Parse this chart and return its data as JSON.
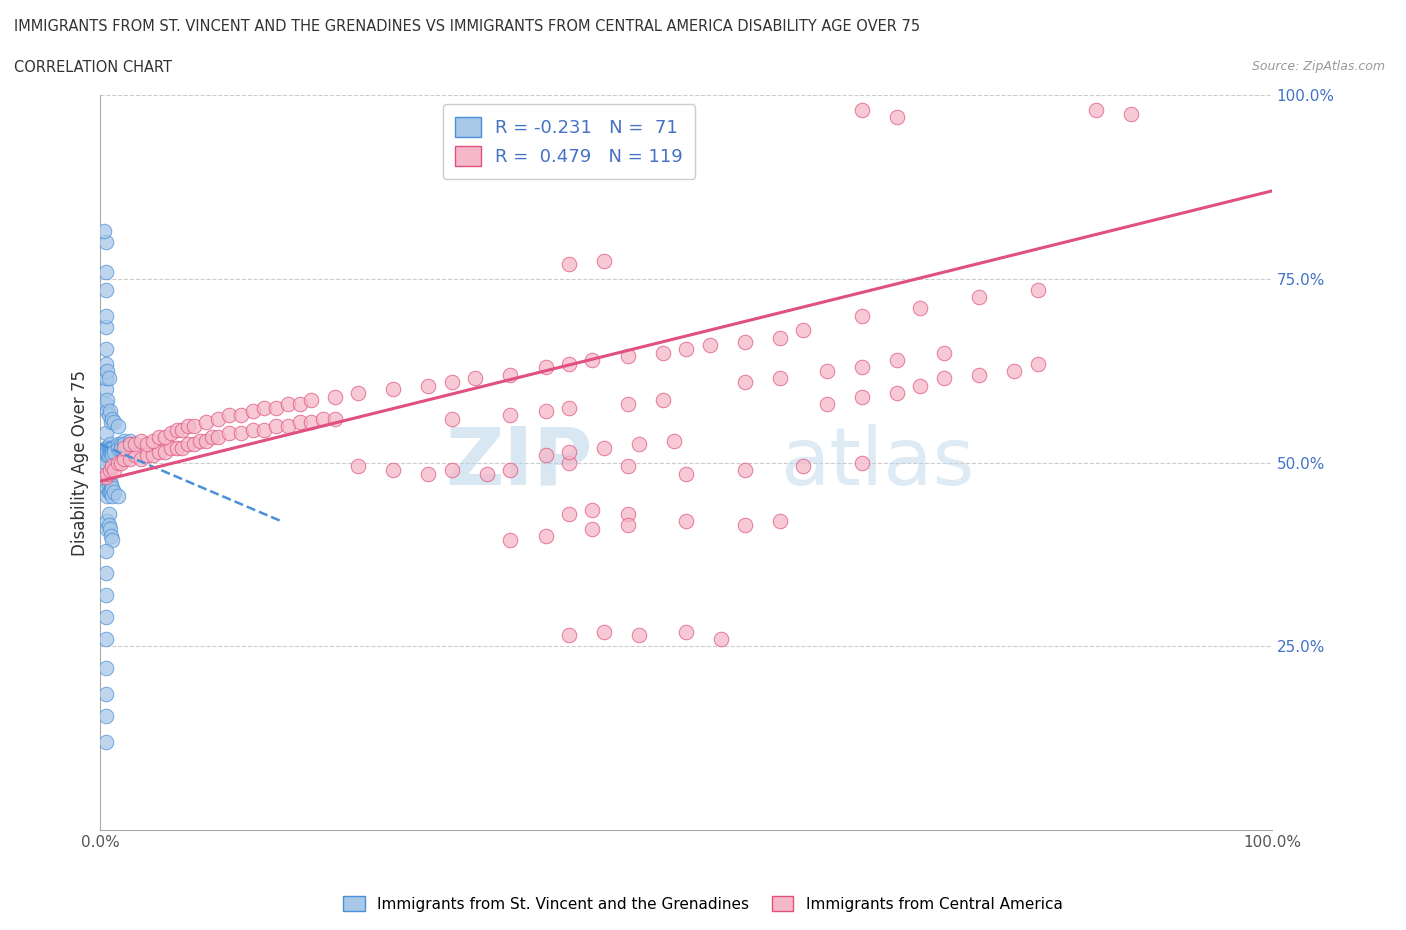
{
  "title_line1": "IMMIGRANTS FROM ST. VINCENT AND THE GRENADINES VS IMMIGRANTS FROM CENTRAL AMERICA DISABILITY AGE OVER 75",
  "title_line2": "CORRELATION CHART",
  "source_text": "Source: ZipAtlas.com",
  "ylabel": "Disability Age Over 75",
  "xlim": [
    0.0,
    1.0
  ],
  "ylim": [
    0.0,
    1.0
  ],
  "color_blue": "#a8c8e8",
  "color_pink": "#f4b8c8",
  "color_trendline_blue": "#4a90d9",
  "color_trendline_pink": "#e05080",
  "watermark_zip": "ZIP",
  "watermark_atlas": "atlas",
  "blue_trend_x": [
    0.0,
    0.155
  ],
  "blue_trend_y": [
    0.525,
    0.42
  ],
  "pink_trend_x": [
    0.0,
    1.0
  ],
  "pink_trend_y": [
    0.475,
    0.87
  ],
  "blue_scatter": [
    [
      0.005,
      0.52
    ],
    [
      0.005,
      0.54
    ],
    [
      0.005,
      0.505
    ],
    [
      0.005,
      0.51
    ],
    [
      0.005,
      0.515
    ],
    [
      0.005,
      0.5
    ],
    [
      0.006,
      0.52
    ],
    [
      0.006,
      0.51
    ],
    [
      0.006,
      0.515
    ],
    [
      0.007,
      0.52
    ],
    [
      0.007,
      0.51
    ],
    [
      0.008,
      0.525
    ],
    [
      0.008,
      0.52
    ],
    [
      0.008,
      0.515
    ],
    [
      0.009,
      0.52
    ],
    [
      0.009,
      0.515
    ],
    [
      0.01,
      0.52
    ],
    [
      0.01,
      0.515
    ],
    [
      0.01,
      0.51
    ],
    [
      0.012,
      0.52
    ],
    [
      0.012,
      0.515
    ],
    [
      0.015,
      0.525
    ],
    [
      0.015,
      0.52
    ],
    [
      0.018,
      0.525
    ],
    [
      0.018,
      0.52
    ],
    [
      0.02,
      0.53
    ],
    [
      0.02,
      0.525
    ],
    [
      0.025,
      0.53
    ],
    [
      0.005,
      0.58
    ],
    [
      0.005,
      0.6
    ],
    [
      0.005,
      0.615
    ],
    [
      0.006,
      0.57
    ],
    [
      0.006,
      0.585
    ],
    [
      0.007,
      0.565
    ],
    [
      0.008,
      0.57
    ],
    [
      0.009,
      0.555
    ],
    [
      0.01,
      0.56
    ],
    [
      0.012,
      0.555
    ],
    [
      0.015,
      0.55
    ],
    [
      0.005,
      0.635
    ],
    [
      0.005,
      0.655
    ],
    [
      0.006,
      0.625
    ],
    [
      0.007,
      0.615
    ],
    [
      0.005,
      0.685
    ],
    [
      0.005,
      0.7
    ],
    [
      0.005,
      0.735
    ],
    [
      0.005,
      0.76
    ],
    [
      0.005,
      0.8
    ],
    [
      0.003,
      0.815
    ],
    [
      0.006,
      0.48
    ],
    [
      0.006,
      0.465
    ],
    [
      0.006,
      0.455
    ],
    [
      0.007,
      0.47
    ],
    [
      0.007,
      0.46
    ],
    [
      0.008,
      0.475
    ],
    [
      0.008,
      0.46
    ],
    [
      0.009,
      0.47
    ],
    [
      0.009,
      0.46
    ],
    [
      0.01,
      0.465
    ],
    [
      0.01,
      0.455
    ],
    [
      0.012,
      0.46
    ],
    [
      0.015,
      0.455
    ],
    [
      0.006,
      0.42
    ],
    [
      0.006,
      0.41
    ],
    [
      0.007,
      0.43
    ],
    [
      0.007,
      0.415
    ],
    [
      0.008,
      0.41
    ],
    [
      0.009,
      0.4
    ],
    [
      0.01,
      0.395
    ],
    [
      0.005,
      0.38
    ],
    [
      0.005,
      0.35
    ],
    [
      0.005,
      0.32
    ],
    [
      0.005,
      0.29
    ],
    [
      0.005,
      0.26
    ],
    [
      0.005,
      0.22
    ],
    [
      0.005,
      0.185
    ],
    [
      0.005,
      0.155
    ],
    [
      0.005,
      0.12
    ]
  ],
  "pink_scatter": [
    [
      0.005,
      0.48
    ],
    [
      0.006,
      0.485
    ],
    [
      0.008,
      0.49
    ],
    [
      0.01,
      0.495
    ],
    [
      0.012,
      0.49
    ],
    [
      0.015,
      0.5
    ],
    [
      0.018,
      0.5
    ],
    [
      0.02,
      0.505
    ],
    [
      0.025,
      0.505
    ],
    [
      0.03,
      0.51
    ],
    [
      0.035,
      0.505
    ],
    [
      0.04,
      0.51
    ],
    [
      0.045,
      0.51
    ],
    [
      0.05,
      0.515
    ],
    [
      0.055,
      0.515
    ],
    [
      0.06,
      0.52
    ],
    [
      0.065,
      0.52
    ],
    [
      0.07,
      0.52
    ],
    [
      0.075,
      0.525
    ],
    [
      0.08,
      0.525
    ],
    [
      0.085,
      0.53
    ],
    [
      0.09,
      0.53
    ],
    [
      0.095,
      0.535
    ],
    [
      0.1,
      0.535
    ],
    [
      0.11,
      0.54
    ],
    [
      0.12,
      0.54
    ],
    [
      0.13,
      0.545
    ],
    [
      0.14,
      0.545
    ],
    [
      0.15,
      0.55
    ],
    [
      0.16,
      0.55
    ],
    [
      0.17,
      0.555
    ],
    [
      0.18,
      0.555
    ],
    [
      0.19,
      0.56
    ],
    [
      0.2,
      0.56
    ],
    [
      0.02,
      0.52
    ],
    [
      0.025,
      0.525
    ],
    [
      0.03,
      0.525
    ],
    [
      0.035,
      0.53
    ],
    [
      0.04,
      0.525
    ],
    [
      0.045,
      0.53
    ],
    [
      0.05,
      0.535
    ],
    [
      0.055,
      0.535
    ],
    [
      0.06,
      0.54
    ],
    [
      0.065,
      0.545
    ],
    [
      0.07,
      0.545
    ],
    [
      0.075,
      0.55
    ],
    [
      0.08,
      0.55
    ],
    [
      0.09,
      0.555
    ],
    [
      0.1,
      0.56
    ],
    [
      0.11,
      0.565
    ],
    [
      0.12,
      0.565
    ],
    [
      0.13,
      0.57
    ],
    [
      0.14,
      0.575
    ],
    [
      0.15,
      0.575
    ],
    [
      0.16,
      0.58
    ],
    [
      0.17,
      0.58
    ],
    [
      0.18,
      0.585
    ],
    [
      0.2,
      0.59
    ],
    [
      0.22,
      0.595
    ],
    [
      0.25,
      0.6
    ],
    [
      0.28,
      0.605
    ],
    [
      0.3,
      0.61
    ],
    [
      0.32,
      0.615
    ],
    [
      0.35,
      0.62
    ],
    [
      0.38,
      0.63
    ],
    [
      0.4,
      0.635
    ],
    [
      0.42,
      0.64
    ],
    [
      0.45,
      0.645
    ],
    [
      0.48,
      0.65
    ],
    [
      0.5,
      0.655
    ],
    [
      0.52,
      0.66
    ],
    [
      0.55,
      0.665
    ],
    [
      0.58,
      0.67
    ],
    [
      0.6,
      0.68
    ],
    [
      0.55,
      0.61
    ],
    [
      0.58,
      0.615
    ],
    [
      0.62,
      0.625
    ],
    [
      0.65,
      0.63
    ],
    [
      0.68,
      0.64
    ],
    [
      0.72,
      0.65
    ],
    [
      0.62,
      0.58
    ],
    [
      0.65,
      0.59
    ],
    [
      0.68,
      0.595
    ],
    [
      0.7,
      0.605
    ],
    [
      0.72,
      0.615
    ],
    [
      0.75,
      0.62
    ],
    [
      0.78,
      0.625
    ],
    [
      0.8,
      0.635
    ],
    [
      0.65,
      0.7
    ],
    [
      0.7,
      0.71
    ],
    [
      0.75,
      0.725
    ],
    [
      0.8,
      0.735
    ],
    [
      0.4,
      0.5
    ],
    [
      0.45,
      0.495
    ],
    [
      0.5,
      0.485
    ],
    [
      0.55,
      0.49
    ],
    [
      0.6,
      0.495
    ],
    [
      0.65,
      0.5
    ],
    [
      0.4,
      0.43
    ],
    [
      0.42,
      0.435
    ],
    [
      0.45,
      0.43
    ],
    [
      0.5,
      0.42
    ],
    [
      0.55,
      0.415
    ],
    [
      0.58,
      0.42
    ],
    [
      0.35,
      0.395
    ],
    [
      0.38,
      0.4
    ],
    [
      0.42,
      0.41
    ],
    [
      0.45,
      0.415
    ],
    [
      0.3,
      0.56
    ],
    [
      0.35,
      0.565
    ],
    [
      0.38,
      0.57
    ],
    [
      0.4,
      0.575
    ],
    [
      0.45,
      0.58
    ],
    [
      0.48,
      0.585
    ],
    [
      0.22,
      0.495
    ],
    [
      0.25,
      0.49
    ],
    [
      0.28,
      0.485
    ],
    [
      0.3,
      0.49
    ],
    [
      0.33,
      0.485
    ],
    [
      0.35,
      0.49
    ],
    [
      0.38,
      0.51
    ],
    [
      0.4,
      0.515
    ],
    [
      0.43,
      0.52
    ],
    [
      0.46,
      0.525
    ],
    [
      0.49,
      0.53
    ],
    [
      0.4,
      0.77
    ],
    [
      0.43,
      0.775
    ],
    [
      0.65,
      0.98
    ],
    [
      0.68,
      0.97
    ],
    [
      0.85,
      0.98
    ],
    [
      0.88,
      0.975
    ],
    [
      0.4,
      0.265
    ],
    [
      0.43,
      0.27
    ],
    [
      0.46,
      0.265
    ],
    [
      0.5,
      0.27
    ],
    [
      0.53,
      0.26
    ]
  ]
}
